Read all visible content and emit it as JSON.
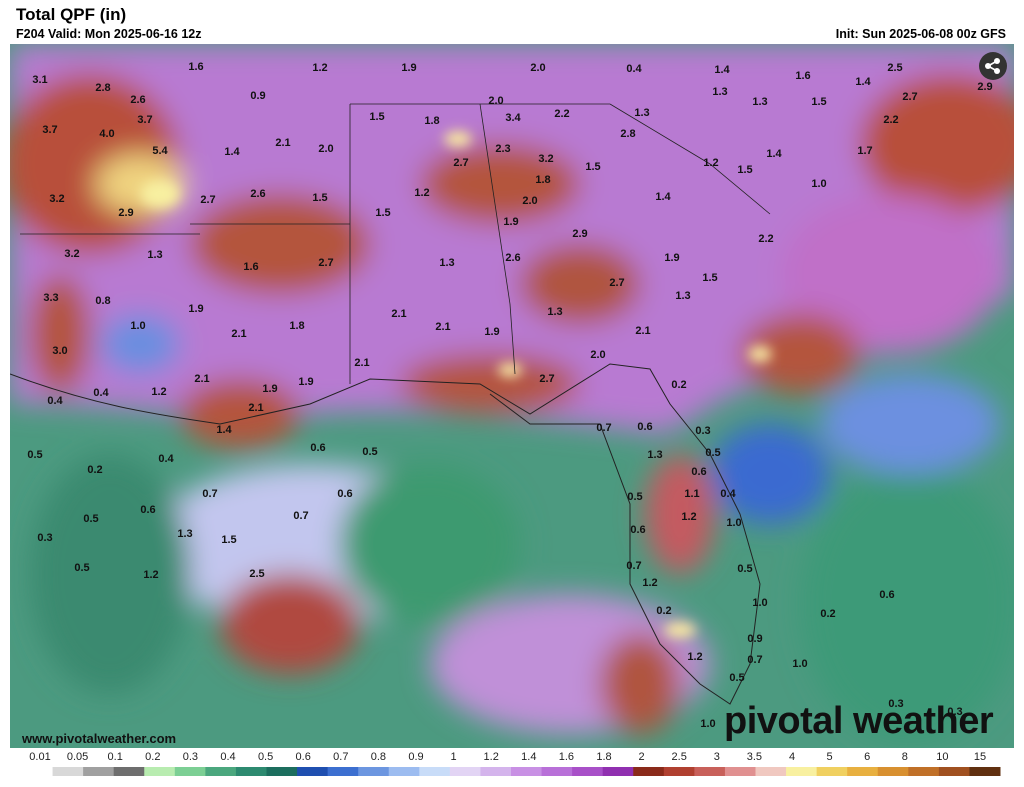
{
  "header": {
    "title": "Total QPF (in)",
    "valid": "F204 Valid: Mon 2025-06-16 12z",
    "init": "Init: Sun 2025-06-08 00z GFS"
  },
  "footer": {
    "site": "www.pivotalweather.com",
    "logo": "pivotal weather"
  },
  "map": {
    "point_labels": [
      "3.1",
      "2.8",
      "2.6",
      "1.6",
      "1.2",
      "1.9",
      "2.0",
      "0.4",
      "1.4",
      "1.6",
      "1.4",
      "2.5",
      "2.7",
      "2.9",
      "1.3",
      "0.9",
      "2.0",
      "1.3",
      "1.5",
      "3.7",
      "4.0",
      "3.7",
      "2.2",
      "1.3",
      "1.5",
      "1.8",
      "3.4",
      "2.8",
      "2.2",
      "5.4",
      "1.4",
      "2.1",
      "2.0",
      "2.3",
      "3.2",
      "2.7",
      "1.5",
      "1.2",
      "1.5",
      "1.4",
      "1.7",
      "1.8",
      "1.0",
      "3.2",
      "2.9",
      "2.7",
      "2.6",
      "1.5",
      "1.2",
      "2.0",
      "1.4",
      "1.5",
      "1.9",
      "2.9",
      "2.2",
      "3.2",
      "1.3",
      "1.6",
      "2.7",
      "1.3",
      "2.6",
      "1.9",
      "1.5",
      "2.7",
      "3.3",
      "0.8",
      "1.9",
      "1.3",
      "1.0",
      "2.1",
      "1.3",
      "2.1",
      "1.8",
      "2.1",
      "1.9",
      "2.1",
      "3.0",
      "2.0",
      "2.1",
      "2.1",
      "1.2",
      "1.9",
      "1.9",
      "2.7",
      "0.2",
      "0.4",
      "0.4",
      "2.1",
      "1.4",
      "0.7",
      "0.6",
      "0.3",
      "0.6",
      "0.5",
      "0.5",
      "0.4",
      "1.3",
      "0.5",
      "0.2",
      "0.6",
      "0.7",
      "0.6",
      "0.5",
      "1.1",
      "0.4",
      "0.5",
      "0.6",
      "0.7",
      "1.2",
      "1.0",
      "0.6",
      "1.3",
      "1.5",
      "0.3",
      "0.5",
      "1.2",
      "2.5",
      "0.7",
      "0.5",
      "1.2",
      "1.0",
      "0.2",
      "0.6",
      "0.2",
      "0.9",
      "1.2",
      "0.7",
      "1.0",
      "0.5",
      "0.3",
      "1.0",
      "0.3"
    ]
  },
  "colorbar": {
    "labels": [
      "0.01",
      "0.05",
      "0.1",
      "0.2",
      "0.3",
      "0.4",
      "0.5",
      "0.6",
      "0.7",
      "0.8",
      "0.9",
      "1",
      "1.2",
      "1.4",
      "1.6",
      "1.8",
      "2",
      "2.5",
      "3",
      "3.5",
      "4",
      "5",
      "6",
      "8",
      "10",
      "15"
    ],
    "colors": [
      "#ffffff",
      "#d8d8d8",
      "#a0a0a0",
      "#6e6e6e",
      "#b8ecb0",
      "#7ccf94",
      "#4ba77e",
      "#2d8a70",
      "#1c6e5e",
      "#1f4fb0",
      "#3c6fd0",
      "#6c96e0",
      "#9cbcf0",
      "#c8dcf8",
      "#e2d4f4",
      "#d4b4ec",
      "#c890e4",
      "#b870d8",
      "#a850c8",
      "#9030b0",
      "#8a2a1a",
      "#b04030",
      "#c8605a",
      "#e09090",
      "#f0c8c0",
      "#f8f0a0",
      "#f0d060",
      "#e8b040",
      "#d89030",
      "#c07028",
      "#a05020",
      "#603010"
    ]
  }
}
